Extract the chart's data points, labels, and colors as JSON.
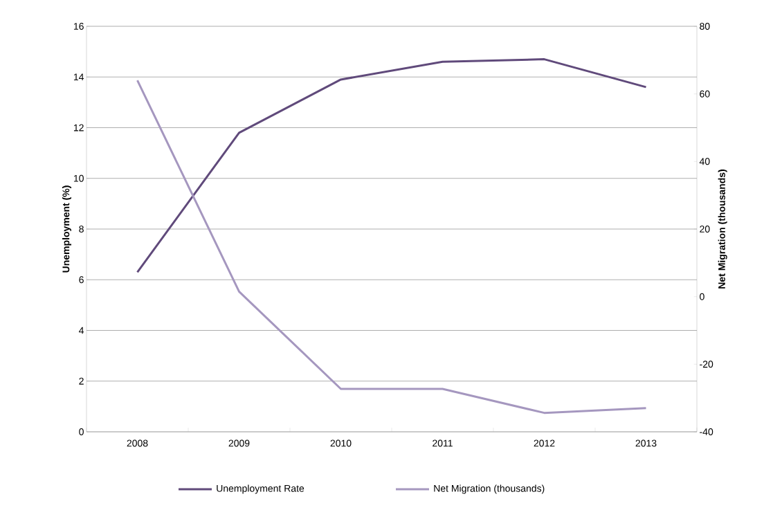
{
  "chart_data": {
    "type": "line",
    "ylabel": "Unemployment (%)",
    "y2label": "Net Migration (thousands)",
    "categories": [
      "2008",
      "2009",
      "2010",
      "2011",
      "2012",
      "2013"
    ],
    "series": [
      {
        "name": "Unemployment Rate",
        "color": "#604a7b",
        "values": [
          6.3,
          11.8,
          13.9,
          14.6,
          14.7,
          13.6
        ]
      },
      {
        "name": "Net Migration (thousands)",
        "color": "#a597bf",
        "axis": "y2",
        "values": [
          64,
          1.5,
          -27.3,
          -27.3,
          -34.4,
          -33
        ]
      }
    ],
    "ylim": [
      0,
      16
    ],
    "yticks": [
      0,
      2,
      4,
      6,
      8,
      10,
      12,
      14,
      16
    ],
    "y2lim": [
      -40,
      80
    ],
    "y2ticks": [
      -40,
      -20,
      0,
      20,
      40,
      60,
      80
    ],
    "grid": "y",
    "legend": "bottom",
    "marker": "none",
    "line_style": "solid"
  }
}
